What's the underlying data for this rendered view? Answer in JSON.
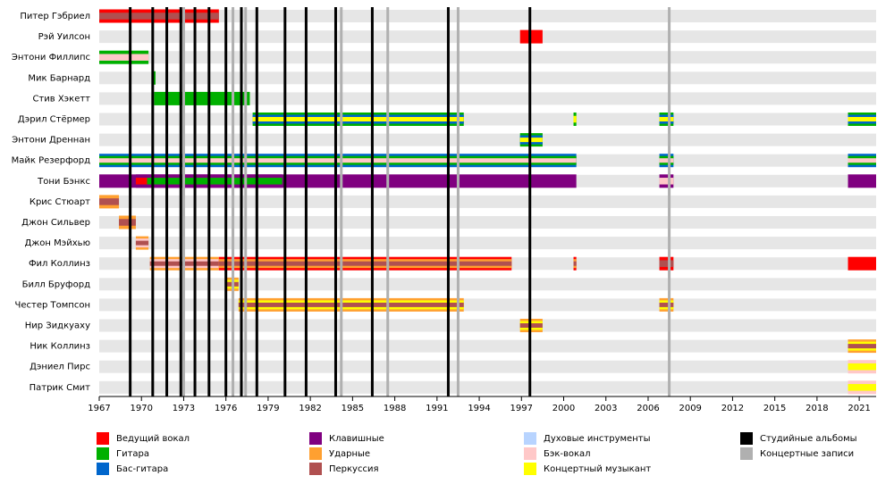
{
  "chart_data": {
    "type": "timeline",
    "xlim": [
      1967,
      2022.2
    ],
    "xticks": [
      1967,
      1970,
      1973,
      1976,
      1979,
      1982,
      1985,
      1988,
      1991,
      1994,
      1997,
      2000,
      2003,
      2006,
      2009,
      2012,
      2015,
      2018,
      2021
    ],
    "legend": [
      {
        "label": "Ведущий вокал",
        "color": "#ff0000"
      },
      {
        "label": "Гитара",
        "color": "#00b000"
      },
      {
        "label": "Бас-гитара",
        "color": "#0066cc"
      },
      {
        "label": "Клавишные",
        "color": "#800080"
      },
      {
        "label": "Ударные",
        "color": "#ffa030"
      },
      {
        "label": "Перкуссия",
        "color": "#b05050"
      },
      {
        "label": "Духовые инструменты",
        "color": "#b8d4ff"
      },
      {
        "label": "Бэк-вокал",
        "color": "#ffc8c8"
      },
      {
        "label": "Концертный музыкант",
        "color": "#ffff00"
      },
      {
        "label": "Студийные альбомы",
        "color": "#000000"
      },
      {
        "label": "Концертные записи",
        "color": "#b0b0b0"
      }
    ],
    "lines": [
      {
        "legend": 9,
        "x": [
          1969.2,
          1970.8,
          1971.8,
          1972.8,
          1973.8,
          1974.8,
          1976.0,
          1977.1,
          1978.2,
          1980.2,
          1981.7,
          1983.8,
          1986.4,
          1991.8,
          1997.6
        ]
      },
      {
        "legend": 10,
        "x": [
          1973.0,
          1976.5,
          1977.4,
          1984.2,
          1987.5,
          1992.5,
          2007.5
        ]
      }
    ],
    "rows": [
      {
        "name": "Питер Гэбриел",
        "bars": [
          {
            "start": 1967,
            "end": 1975.5,
            "roles": [
              0,
              5
            ]
          }
        ]
      },
      {
        "name": "Рэй Уилсон",
        "bars": [
          {
            "start": 1996.9,
            "end": 1998.5,
            "roles": [
              0
            ]
          }
        ]
      },
      {
        "name": "Энтони Филлипс",
        "bars": [
          {
            "start": 1967,
            "end": 1970.5,
            "roles": [
              1,
              7
            ]
          }
        ]
      },
      {
        "name": "Мик Барнард",
        "bars": [
          {
            "start": 1970.8,
            "end": 1971.0,
            "roles": [
              1
            ]
          }
        ]
      },
      {
        "name": "Стив Хэкетт",
        "bars": [
          {
            "start": 1970.9,
            "end": 1977.7,
            "roles": [
              1
            ]
          }
        ]
      },
      {
        "name": "Дэрил Стёрмер",
        "bars": [
          {
            "start": 1977.9,
            "end": 1992.9,
            "roles": [
              1,
              2,
              8
            ]
          },
          {
            "start": 2000.7,
            "end": 2000.9,
            "roles": [
              1,
              8
            ]
          },
          {
            "start": 2006.8,
            "end": 2007.8,
            "roles": [
              1,
              2,
              8
            ]
          },
          {
            "start": 2020.2,
            "end": 2022.2,
            "roles": [
              1,
              2,
              8
            ]
          }
        ]
      },
      {
        "name": "Энтони Дреннан",
        "bars": [
          {
            "start": 1996.9,
            "end": 1998.5,
            "roles": [
              1,
              2,
              8
            ]
          }
        ]
      },
      {
        "name": "Майк Резерфорд",
        "bars": [
          {
            "start": 1967,
            "end": 2000.9,
            "roles": [
              2,
              1,
              7
            ]
          },
          {
            "start": 2006.8,
            "end": 2007.8,
            "roles": [
              2,
              1,
              7
            ]
          },
          {
            "start": 2020.2,
            "end": 2022.2,
            "roles": [
              2,
              1,
              7
            ]
          }
        ]
      },
      {
        "name": "Тони Бэнкс",
        "bars": [
          {
            "start": 1967,
            "end": 2000.9,
            "roles": [
              3
            ]
          },
          {
            "start": 1969.6,
            "end": 1970.4,
            "roles": [
              3,
              0
            ]
          },
          {
            "start": 1970.4,
            "end": 1980.0,
            "roles": [
              3,
              1
            ]
          },
          {
            "start": 2006.8,
            "end": 2007.8,
            "roles": [
              3,
              7
            ]
          },
          {
            "start": 2020.2,
            "end": 2022.2,
            "roles": [
              3
            ]
          }
        ]
      },
      {
        "name": "Крис Стюарт",
        "bars": [
          {
            "start": 1967,
            "end": 1968.4,
            "roles": [
              4,
              5
            ]
          }
        ]
      },
      {
        "name": "Джон Сильвер",
        "bars": [
          {
            "start": 1968.4,
            "end": 1969.6,
            "roles": [
              4,
              5
            ]
          }
        ]
      },
      {
        "name": "Джон Мэйхью",
        "bars": [
          {
            "start": 1969.6,
            "end": 1970.5,
            "roles": [
              4,
              7,
              5
            ]
          }
        ]
      },
      {
        "name": "Фил Коллинз",
        "bars": [
          {
            "start": 1970.6,
            "end": 1975.5,
            "roles": [
              4,
              7,
              5
            ]
          },
          {
            "start": 1975.5,
            "end": 1996.3,
            "roles": [
              0,
              4,
              5
            ]
          },
          {
            "start": 2000.7,
            "end": 2000.9,
            "roles": [
              0,
              4,
              5
            ]
          },
          {
            "start": 2006.8,
            "end": 2007.8,
            "roles": [
              0,
              5
            ]
          },
          {
            "start": 2020.2,
            "end": 2022.2,
            "roles": [
              0
            ]
          }
        ]
      },
      {
        "name": "Билл Бруфорд",
        "bars": [
          {
            "start": 1976.0,
            "end": 1976.9,
            "roles": [
              4,
              8,
              5
            ]
          }
        ]
      },
      {
        "name": "Честер Томпсон",
        "bars": [
          {
            "start": 1976.9,
            "end": 1992.9,
            "roles": [
              4,
              8,
              5
            ]
          },
          {
            "start": 2006.8,
            "end": 2007.8,
            "roles": [
              4,
              8,
              5
            ]
          }
        ]
      },
      {
        "name": "Нир Зидкуаху",
        "bars": [
          {
            "start": 1996.9,
            "end": 1998.5,
            "roles": [
              4,
              8,
              5
            ]
          }
        ]
      },
      {
        "name": "Ник Коллинз",
        "bars": [
          {
            "start": 2020.2,
            "end": 2022.2,
            "roles": [
              4,
              8,
              5
            ]
          }
        ]
      },
      {
        "name": "Дэниел Пирс",
        "bars": [
          {
            "start": 2020.2,
            "end": 2022.2,
            "roles": [
              7,
              8
            ]
          }
        ]
      },
      {
        "name": "Патрик Смит",
        "bars": [
          {
            "start": 2020.2,
            "end": 2022.2,
            "roles": [
              7,
              8
            ]
          }
        ]
      }
    ]
  }
}
